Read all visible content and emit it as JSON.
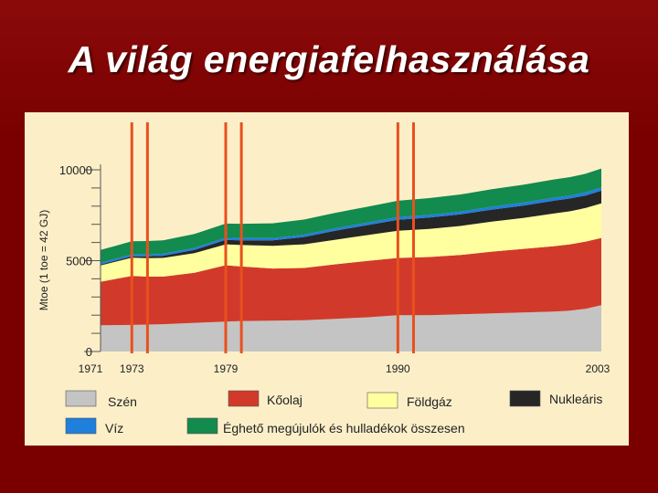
{
  "slide": {
    "title": "A világ energiafelhasználása"
  },
  "chart_data": {
    "type": "area",
    "stacked": true,
    "ylabel": "Mtoe (1 toe = 42 GJ)",
    "ylim": [
      0,
      10000
    ],
    "yticks": [
      0,
      5000,
      10000
    ],
    "xlim": [
      1971,
      2003
    ],
    "x_tick_labels": [
      {
        "x": 1971,
        "label": "1971"
      },
      {
        "x": 1973,
        "label": "1973"
      },
      {
        "x": 1979,
        "label": "1979"
      },
      {
        "x": 1990,
        "label": "1990"
      },
      {
        "x": 2003,
        "label": "2003"
      }
    ],
    "x": [
      1971,
      1973,
      1974,
      1975,
      1977,
      1979,
      1980,
      1982,
      1984,
      1986,
      1988,
      1990,
      1992,
      1994,
      1996,
      1998,
      2000,
      2001,
      2002,
      2003
    ],
    "series": [
      {
        "name": "Szén",
        "color": "#c4c4c4",
        "values": [
          1440,
          1460,
          1480,
          1500,
          1580,
          1650,
          1680,
          1700,
          1720,
          1800,
          1880,
          2000,
          2000,
          2050,
          2100,
          2150,
          2200,
          2250,
          2350,
          2550
        ]
      },
      {
        "name": "Kőolaj",
        "color": "#d13a2a",
        "values": [
          2400,
          2700,
          2640,
          2620,
          2750,
          3100,
          3000,
          2870,
          2880,
          3000,
          3100,
          3150,
          3200,
          3260,
          3400,
          3500,
          3600,
          3650,
          3700,
          3700
        ]
      },
      {
        "name": "Földgáz",
        "color": "#ffffa0",
        "values": [
          900,
          1000,
          1020,
          1030,
          1080,
          1150,
          1180,
          1250,
          1300,
          1350,
          1420,
          1500,
          1550,
          1600,
          1650,
          1700,
          1800,
          1820,
          1850,
          1900
        ]
      },
      {
        "name": "Nukleáris",
        "color": "#262626",
        "values": [
          50,
          80,
          100,
          120,
          180,
          240,
          260,
          300,
          400,
          500,
          550,
          600,
          620,
          640,
          660,
          680,
          700,
          700,
          690,
          700
        ]
      },
      {
        "name": "Víz",
        "color": "#1f7fdc",
        "values": [
          100,
          105,
          108,
          110,
          115,
          120,
          122,
          126,
          130,
          135,
          140,
          145,
          150,
          155,
          160,
          165,
          170,
          170,
          175,
          180
        ]
      },
      {
        "name": "Éghető megújulók és hulladékok összesen",
        "color": "#138a4e",
        "values": [
          700,
          720,
          730,
          740,
          760,
          780,
          790,
          810,
          830,
          850,
          870,
          900,
          920,
          940,
          960,
          980,
          1000,
          1010,
          1020,
          1040
        ]
      }
    ],
    "vertical_markers": [
      1973,
      1974,
      1979,
      1980,
      1990,
      1991
    ],
    "marker_color": "#e8501e"
  }
}
